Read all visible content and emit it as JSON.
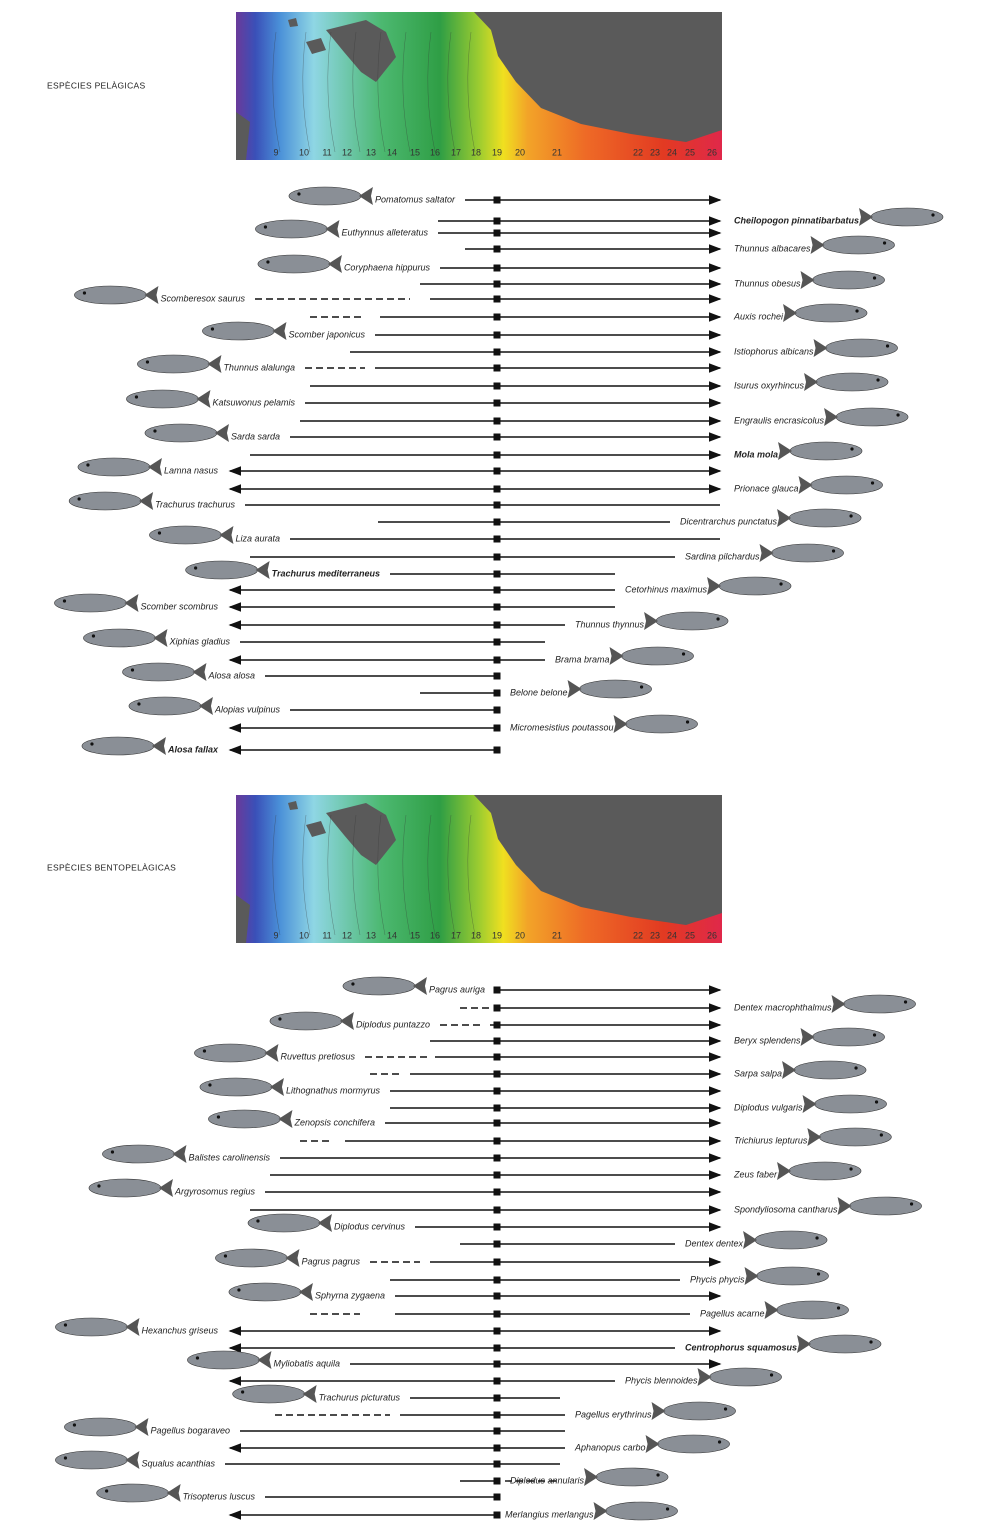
{
  "panels": [
    {
      "title": "ESPÈCIES PELÀGICAS",
      "temperature_labels": [
        9,
        10,
        11,
        12,
        13,
        14,
        15,
        16,
        17,
        18,
        19,
        20,
        21,
        22,
        23,
        24,
        25,
        26
      ],
      "species": [
        {
          "name": "Pomatomus saltator"
        },
        {
          "name": "Cheilopogon pinnatibarbatus",
          "bold": true
        },
        {
          "name": "Euthynnus alleteratus"
        },
        {
          "name": "Thunnus albacares"
        },
        {
          "name": "Coryphaena hippurus"
        },
        {
          "name": "Thunnus obesus"
        },
        {
          "name": "Scomberesox saurus"
        },
        {
          "name": "Auxis rochei"
        },
        {
          "name": "Scomber japonicus"
        },
        {
          "name": "Istiophorus albicans"
        },
        {
          "name": "Thunnus alalunga"
        },
        {
          "name": "Isurus oxyrhincus"
        },
        {
          "name": "Katsuwonus pelamis"
        },
        {
          "name": "Engraulis encrasicolus"
        },
        {
          "name": "Sarda sarda"
        },
        {
          "name": "Mola mola",
          "bold": true
        },
        {
          "name": "Lamna nasus"
        },
        {
          "name": "Prionace glauca"
        },
        {
          "name": "Trachurus trachurus"
        },
        {
          "name": "Dicentrarchus punctatus"
        },
        {
          "name": "Liza aurata"
        },
        {
          "name": "Sardina pilchardus"
        },
        {
          "name": "Trachurus mediterraneus",
          "bold": true
        },
        {
          "name": "Cetorhinus maximus"
        },
        {
          "name": "Scomber scombrus"
        },
        {
          "name": "Thunnus thynnus"
        },
        {
          "name": "Xiphias gladius"
        },
        {
          "name": "Brama brama"
        },
        {
          "name": "Alosa alosa"
        },
        {
          "name": "Belone belone"
        },
        {
          "name": "Alopias vulpinus"
        },
        {
          "name": "Micromesistius poutassou"
        },
        {
          "name": "Alosa fallax",
          "bold": true
        }
      ]
    },
    {
      "title": "ESPÈCIES BENTOPELÀGICAS",
      "temperature_labels": [
        9,
        10,
        11,
        12,
        13,
        14,
        15,
        16,
        17,
        18,
        19,
        20,
        21,
        22,
        23,
        24,
        25,
        26
      ],
      "species": [
        {
          "name": "Pagrus auriga"
        },
        {
          "name": "Dentex macrophthalmus"
        },
        {
          "name": "Diplodus puntazzo"
        },
        {
          "name": "Beryx splendens"
        },
        {
          "name": "Ruvettus pretiosus"
        },
        {
          "name": "Sarpa salpa"
        },
        {
          "name": "Lithognathus mormyrus"
        },
        {
          "name": "Diplodus vulgaris"
        },
        {
          "name": "Zenopsis conchifera"
        },
        {
          "name": "Trichiurus lepturus"
        },
        {
          "name": "Balistes carolinensis"
        },
        {
          "name": "Zeus faber"
        },
        {
          "name": "Argyrosomus regius"
        },
        {
          "name": "Spondyliosoma cantharus"
        },
        {
          "name": "Diplodus cervinus"
        },
        {
          "name": "Dentex dentex"
        },
        {
          "name": "Pagrus pagrus"
        },
        {
          "name": "Phycis phycis"
        },
        {
          "name": "Sphyrna zygaena"
        },
        {
          "name": "Pagellus acarne"
        },
        {
          "name": "Hexanchus griseus"
        },
        {
          "name": "Centrophorus squamosus",
          "bold": true
        },
        {
          "name": "Myliobatis aquila"
        },
        {
          "name": "Phycis blennoides"
        },
        {
          "name": "Trachurus picturatus"
        },
        {
          "name": "Pagellus erythrinus"
        },
        {
          "name": "Pagellus bogaraveo"
        },
        {
          "name": "Aphanopus carbo"
        },
        {
          "name": "Squalus acanthias"
        },
        {
          "name": "Diplodus annularis"
        },
        {
          "name": "Trisopterus luscus"
        },
        {
          "name": "Merlangius merlangus"
        }
      ]
    }
  ]
}
